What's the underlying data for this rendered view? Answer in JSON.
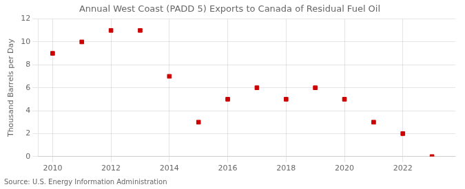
{
  "chart_data": {
    "type": "scatter",
    "title": "Annual West Coast (PADD 5) Exports to Canada of Residual Fuel Oil",
    "ylabel": "Thousand Barrels per Day",
    "annotation": "Source: U.S. Energy Information Administration",
    "x": [
      2010,
      2011,
      2012,
      2013,
      2014,
      2015,
      2016,
      2017,
      2018,
      2019,
      2020,
      2021,
      2022,
      2023
    ],
    "values": [
      9,
      10,
      11,
      11,
      7,
      3,
      5,
      6,
      5,
      6,
      5,
      3,
      2,
      0
    ],
    "color": "#cc0000",
    "marker": "square",
    "xlim": [
      2009.5,
      2023.8
    ],
    "xticks": [
      2010,
      2012,
      2014,
      2016,
      2018,
      2020,
      2022
    ],
    "ylim": [
      0,
      12
    ],
    "yticks": [
      0,
      2,
      4,
      6,
      8,
      10,
      12
    ],
    "grid": true
  }
}
